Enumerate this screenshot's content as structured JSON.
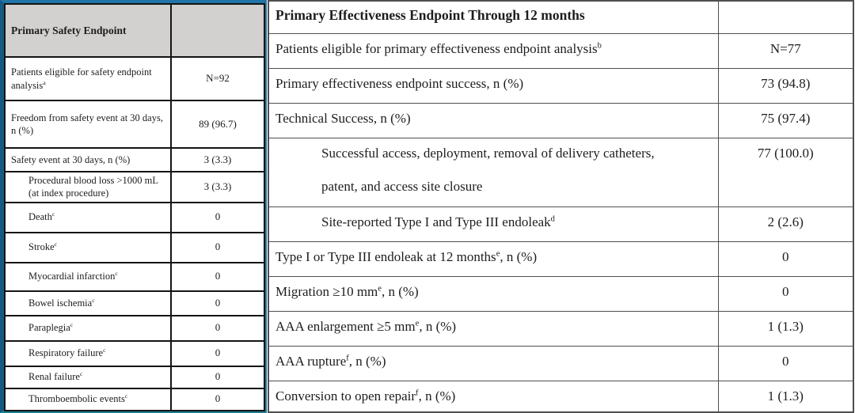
{
  "colors": {
    "safety_box_top": "#2173a8",
    "safety_box_left": "#155a80",
    "safety_box_bottom": "#1d7f93",
    "safety_box_glow": "#90d2de",
    "header_fill": "#d2d1cf",
    "left_table_border": "#141414",
    "right_table_border": "#4f4f4f"
  },
  "left_table": {
    "header": {
      "label": "Primary Safety Endpoint",
      "value": ""
    },
    "rows": [
      {
        "pre": "Patients eligible for safety endpoint analysis",
        "sup": "a",
        "post": "",
        "value": "N=92",
        "indent": false
      },
      {
        "pre": "Freedom from safety event at 30 days, n (%)",
        "sup": "",
        "post": "",
        "value": "89 (96.7)",
        "indent": false
      },
      {
        "pre": "Safety event at 30 days, n (%)",
        "sup": "",
        "post": "",
        "value": "3 (3.3)",
        "indent": false
      },
      {
        "pre": "Procedural blood loss >1000 mL (at index procedure)",
        "sup": "",
        "post": "",
        "value": "3 (3.3)",
        "indent": true
      },
      {
        "pre": "Death",
        "sup": "c",
        "post": "",
        "value": "0",
        "indent": true
      },
      {
        "pre": "Stroke",
        "sup": "c",
        "post": "",
        "value": "0",
        "indent": true
      },
      {
        "pre": "Myocardial infarction",
        "sup": "c",
        "post": "",
        "value": "0",
        "indent": true
      },
      {
        "pre": "Bowel ischemia",
        "sup": "c",
        "post": "",
        "value": "0",
        "indent": true
      },
      {
        "pre": "Paraplegia",
        "sup": "c",
        "post": "",
        "value": "0",
        "indent": true
      },
      {
        "pre": "Respiratory failure",
        "sup": "c",
        "post": "",
        "value": "0",
        "indent": true
      },
      {
        "pre": "Renal failure",
        "sup": "c",
        "post": "",
        "value": "0",
        "indent": true
      },
      {
        "pre": "Thromboembolic events",
        "sup": "c",
        "post": "",
        "value": "0",
        "indent": true
      }
    ]
  },
  "right_table": {
    "header": {
      "label": "Primary Effectiveness Endpoint Through 12 months",
      "value": ""
    },
    "rows": [
      {
        "pre": "Patients eligible for primary effectiveness endpoint analysis",
        "sup": "b",
        "post": "",
        "value": "N=77",
        "indent": false
      },
      {
        "pre": "Primary effectiveness endpoint success, n (%)",
        "sup": "",
        "post": "",
        "value": "73 (94.8)",
        "indent": false
      },
      {
        "pre": "Technical Success, n (%)",
        "sup": "",
        "post": "",
        "value": "75 (97.4)",
        "indent": false
      },
      {
        "pre": "Successful access, deployment, removal of delivery catheters,",
        "sup": "",
        "post": "",
        "line2": "patent, and access site closure",
        "value": "77 (100.0)",
        "indent": true
      },
      {
        "pre": "Site-reported Type I and Type III endoleak",
        "sup": "d",
        "post": "",
        "value": "2 (2.6)",
        "indent": true
      },
      {
        "pre": "Type I or Type III endoleak at 12 months",
        "sup": "e",
        "post": ", n (%)",
        "value": "0",
        "indent": false
      },
      {
        "pre": "Migration ≥10 mm",
        "sup": "e",
        "post": ", n (%)",
        "value": "0",
        "indent": false
      },
      {
        "pre": "AAA enlargement ≥5 mm",
        "sup": "e",
        "post": ", n (%)",
        "value": "1 (1.3)",
        "indent": false
      },
      {
        "pre": "AAA rupture",
        "sup": "f",
        "post": ", n (%)",
        "value": "0",
        "indent": false
      },
      {
        "pre": "Conversion to open repair",
        "sup": "f",
        "post": ", n (%)",
        "value": "1 (1.3)",
        "indent": false
      }
    ]
  }
}
